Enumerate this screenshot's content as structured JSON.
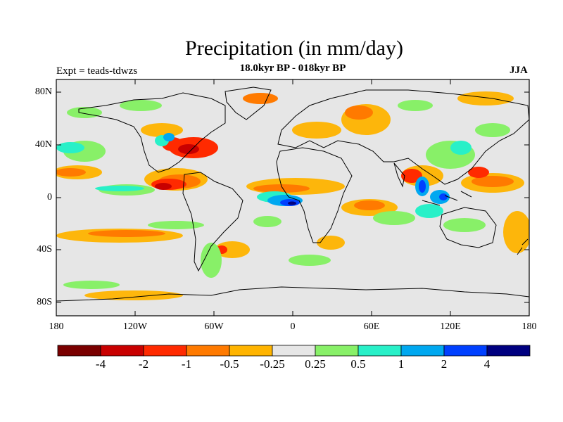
{
  "title": "Precipitation (in mm/day)",
  "subtitle": "18.0kyr BP - 018kyr BP",
  "experiment": "Expt = teads-tdwzs",
  "season": "JJA",
  "lat_ticks": [
    "80N",
    "40N",
    "0",
    "40S",
    "80S"
  ],
  "lon_ticks": [
    "180",
    "120W",
    "60W",
    "0",
    "60E",
    "120E",
    "180"
  ],
  "colorbar": {
    "labels": [
      "-4",
      "-2",
      "-1",
      "-0.5",
      "-0.25",
      "0.25",
      "0.5",
      "1",
      "2",
      "4"
    ],
    "colors": [
      "#7a0000",
      "#c80000",
      "#ff2a00",
      "#ff7a00",
      "#ffb400",
      "#e6e6e6",
      "#88f068",
      "#28f0c8",
      "#00a8f0",
      "#0040ff",
      "#000080"
    ]
  },
  "background_color": "#e6e6e6"
}
